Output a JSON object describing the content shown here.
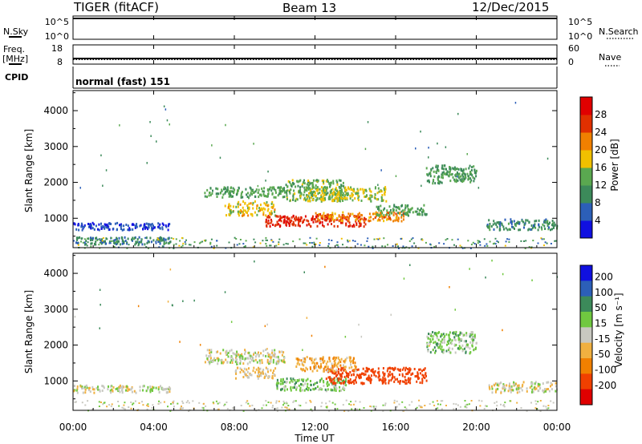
{
  "header": {
    "station": "TIGER (fitACF)",
    "beam": "Beam 13",
    "date": "12/Dec/2015"
  },
  "panels": {
    "nsky": {
      "left_label": "N.Sky",
      "right_label": "N.Search",
      "ticks_left": [
        "10^5",
        "10^0"
      ],
      "ticks_right": [
        "10^5",
        "10^0"
      ]
    },
    "freq": {
      "left_label": "Freq.",
      "unit": "[MHz]",
      "right_label": "Nave",
      "ticks_left": [
        "18",
        "8"
      ],
      "ticks_right": [
        "60",
        "0"
      ]
    },
    "cpid": {
      "left_label": "CPID",
      "text": "normal (fast) 151"
    }
  },
  "x_axis": {
    "label": "Time UT",
    "ticks": [
      "00:00",
      "04:00",
      "08:00",
      "12:00",
      "16:00",
      "20:00",
      "00:00"
    ]
  },
  "colors": {
    "power": [
      "#1010e0",
      "#2c5fb8",
      "#3c8a5a",
      "#5aa850",
      "#f0c000",
      "#f08000",
      "#e03000",
      "#e00000"
    ],
    "velocity": [
      "#e00000",
      "#f04000",
      "#f08000",
      "#f0b040",
      "#c8c8c0",
      "#70c840",
      "#3c8a5a",
      "#2c5fb8",
      "#1010e0"
    ]
  },
  "chart_data": [
    {
      "type": "heatmap",
      "ylabel": "Slant Range [km]",
      "xlabel": "",
      "ylim": [
        180,
        4560
      ],
      "yticks": [
        "1000",
        "2000",
        "3000",
        "4000"
      ],
      "xlim": [
        0,
        24
      ],
      "colorbar": {
        "label": "Power [dB]",
        "ticks": [
          "4",
          "8",
          "12",
          "16",
          "20",
          "24",
          "28"
        ],
        "range": [
          0,
          32
        ]
      },
      "regions": [
        {
          "t": [
            0.0,
            4.8
          ],
          "r": [
            700,
            900
          ],
          "v": 5
        },
        {
          "t": [
            0.0,
            4.8
          ],
          "r": [
            300,
            500
          ],
          "v": 9
        },
        {
          "t": [
            6.5,
            10.5
          ],
          "r": [
            1600,
            1900
          ],
          "v": 13
        },
        {
          "t": [
            7.5,
            10.0
          ],
          "r": [
            1100,
            1500
          ],
          "v": 18
        },
        {
          "t": [
            10.5,
            13.5
          ],
          "r": [
            1500,
            2100
          ],
          "v": 14
        },
        {
          "t": [
            11.5,
            15.5
          ],
          "r": [
            1500,
            1900
          ],
          "v": 16
        },
        {
          "t": [
            9.5,
            14.5
          ],
          "r": [
            800,
            1100
          ],
          "v": 27
        },
        {
          "t": [
            12.0,
            16.5
          ],
          "r": [
            950,
            1200
          ],
          "v": 22
        },
        {
          "t": [
            15.0,
            17.5
          ],
          "r": [
            1100,
            1400
          ],
          "v": 13
        },
        {
          "t": [
            17.5,
            20.0
          ],
          "r": [
            2000,
            2500
          ],
          "v": 12
        },
        {
          "t": [
            20.5,
            24.0
          ],
          "r": [
            700,
            1000
          ],
          "v": 10
        }
      ]
    },
    {
      "type": "heatmap",
      "ylabel": "Slant Range [km]",
      "xlabel": "Time UT",
      "ylim": [
        180,
        4560
      ],
      "yticks": [
        "1000",
        "2000",
        "3000",
        "4000"
      ],
      "xlim": [
        0,
        24
      ],
      "colorbar": {
        "label": "Velocity [m s⁻¹]",
        "ticks": [
          "200",
          "100",
          "50",
          "15",
          "-15",
          "-50",
          "-100",
          "-200"
        ]
      },
      "regions": [
        {
          "t": [
            0.0,
            4.8
          ],
          "r": [
            700,
            900
          ],
          "v": 0
        },
        {
          "t": [
            6.5,
            10.5
          ],
          "r": [
            1500,
            1900
          ],
          "v": 0
        },
        {
          "t": [
            8.0,
            10.0
          ],
          "r": [
            1100,
            1400
          ],
          "v": -20
        },
        {
          "t": [
            10.0,
            13.5
          ],
          "r": [
            750,
            1100
          ],
          "v": 35
        },
        {
          "t": [
            12.5,
            17.5
          ],
          "r": [
            950,
            1400
          ],
          "v": -160
        },
        {
          "t": [
            11.0,
            14.0
          ],
          "r": [
            1300,
            1700
          ],
          "v": -40
        },
        {
          "t": [
            17.5,
            20.0
          ],
          "r": [
            1800,
            2400
          ],
          "v": 30
        },
        {
          "t": [
            20.5,
            24.0
          ],
          "r": [
            700,
            1000
          ],
          "v": 0
        }
      ]
    }
  ]
}
